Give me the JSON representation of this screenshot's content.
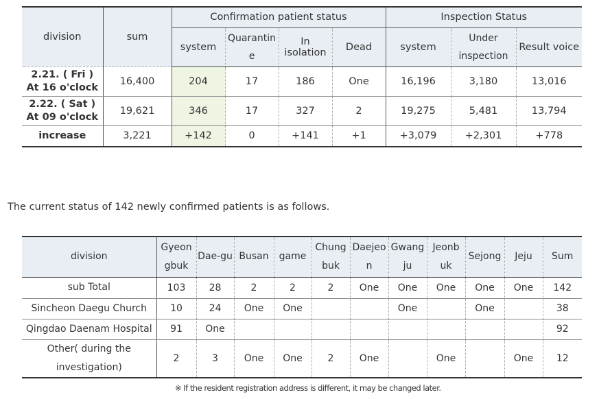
{
  "table1": {
    "headers": {
      "division": "division",
      "sum": "sum",
      "confirmation_group": "Confirmation patient status",
      "inspection_group": "Inspection Status",
      "confirmation_sub": [
        "system",
        "Quarantin e",
        "In isolation",
        "Dead"
      ],
      "inspection_sub": [
        "system",
        "Under inspection",
        "Result voice"
      ]
    },
    "rows": [
      {
        "division_line1": "2.21. ( Fri )",
        "division_line2": "At 16 o'clock",
        "values": [
          "16,400",
          "204",
          "17",
          "186",
          "One",
          "16,196",
          "3,180",
          "13,016"
        ]
      },
      {
        "division_line1": "2.22. ( Sat )",
        "division_line2": "At 09 o'clock",
        "values": [
          "19,621",
          "346",
          "17",
          "327",
          "2",
          "19,275",
          "5,481",
          "13,794"
        ]
      },
      {
        "division_line1": "increase",
        "division_line2": "",
        "values": [
          "3,221",
          "+142",
          "0",
          "+141",
          "+1",
          "+3,079",
          "+2,301",
          "+778"
        ]
      }
    ]
  },
  "sentence": "The current status of 142 newly confirmed patients is as follows.",
  "table2": {
    "header_division": "division",
    "columns": [
      "Gyeon gbuk",
      "Dae-gu",
      "Busan",
      "game",
      "Chung buk",
      "Daejeo n",
      "Gwang ju",
      "Jeonb uk",
      "Sejong",
      "Jeju",
      "Sum"
    ],
    "rows": [
      {
        "label": "sub Total",
        "values": [
          "103",
          "28",
          "2",
          "2",
          "2",
          "One",
          "One",
          "One",
          "One",
          "One",
          "142"
        ]
      },
      {
        "label": "Sincheon Daegu Church",
        "values": [
          "10",
          "24",
          "One",
          "One",
          "",
          "",
          "One",
          "",
          "One",
          "",
          "38"
        ]
      },
      {
        "label": "Qingdao Daenam Hospital",
        "values": [
          "91",
          "One",
          "",
          "",
          "",
          "",
          "",
          "",
          "",
          "",
          "92"
        ]
      },
      {
        "label": "Other( during the investigation)",
        "values": [
          "2",
          "3",
          "One",
          "One",
          "2",
          "One",
          "",
          "One",
          "",
          "One",
          "12"
        ]
      }
    ]
  },
  "footnote": "※ If the resident registration address is different, it may be changed later."
}
